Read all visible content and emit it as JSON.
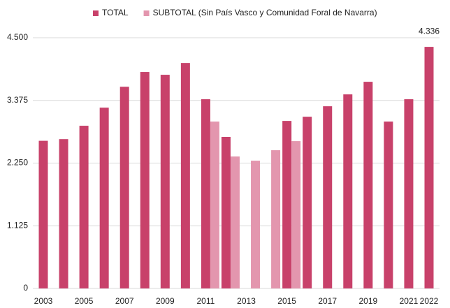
{
  "chart_data": {
    "type": "bar",
    "categories": [
      "2003",
      null,
      "2005",
      null,
      "2007",
      null,
      "2009",
      null,
      "2011",
      null,
      "2013",
      null,
      "2015",
      null,
      "2017",
      null,
      "2019",
      null,
      "2021",
      "2022"
    ],
    "series": [
      {
        "name": "TOTAL",
        "color": "#c8416a",
        "values": [
          2650,
          2680,
          2920,
          3245,
          3620,
          3885,
          3835,
          4047,
          3396,
          2720,
          null,
          null,
          3007,
          3082,
          3270,
          3483,
          3709,
          2995,
          3396,
          4336
        ],
        "value_labels": [
          null,
          null,
          null,
          null,
          null,
          null,
          null,
          null,
          null,
          null,
          null,
          null,
          null,
          null,
          null,
          null,
          null,
          null,
          null,
          "4.336"
        ]
      },
      {
        "name": "SUBTOTAL (Sin País Vasco y Comunidad Foral de Navarra)",
        "color": "#e396ae",
        "values": [
          null,
          null,
          null,
          null,
          null,
          null,
          null,
          null,
          2995,
          2368,
          2293,
          2481,
          2644,
          null,
          null,
          null,
          null,
          null,
          null,
          null
        ]
      }
    ],
    "ylim": [
      0,
      4500
    ],
    "yticks": [
      0,
      {
        "value": 1125,
        "label": "1.125"
      },
      {
        "value": 2250,
        "label": "2.250"
      },
      {
        "value": 3375,
        "label": "3.375"
      },
      {
        "value": 4500,
        "label": "4.500"
      }
    ],
    "grid": true,
    "legend": "top"
  }
}
